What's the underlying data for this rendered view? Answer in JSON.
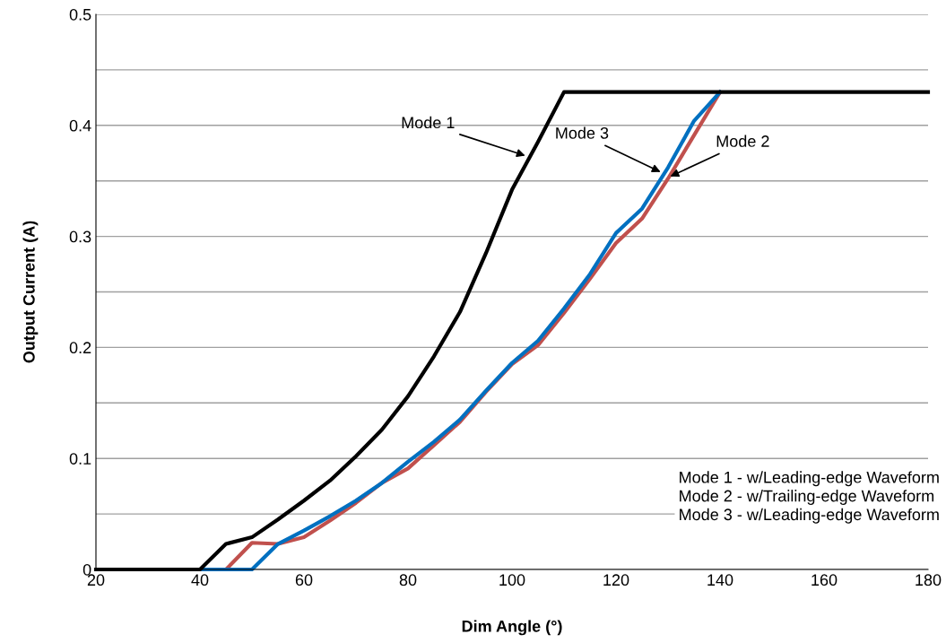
{
  "chart_data": {
    "type": "line",
    "xlabel": "Dim Angle (°)",
    "ylabel": "Output Current (A)",
    "xlim": [
      20,
      180
    ],
    "xticks": [
      20,
      40,
      60,
      80,
      100,
      120,
      140,
      160,
      180
    ],
    "ylim": [
      0,
      0.5
    ],
    "yticks": [
      0,
      {
        "value": 0.05,
        "label": null
      },
      0.1,
      {
        "value": 0.15,
        "label": null
      },
      0.2,
      {
        "value": 0.25,
        "label": null
      },
      0.3,
      {
        "value": 0.35,
        "label": null
      },
      0.4,
      {
        "value": 0.45,
        "label": null
      },
      0.5
    ],
    "grid": "y",
    "marker": "none",
    "line_style": "solid",
    "series": [
      {
        "color": "#c0504d",
        "x": [
          40,
          45,
          50,
          55,
          60,
          65,
          70,
          75,
          80,
          85,
          90,
          95,
          100,
          105,
          110,
          115,
          120,
          125,
          130,
          135,
          140
        ],
        "values": [
          0,
          0,
          0.024,
          0.023,
          0.029,
          0.044,
          0.06,
          0.078,
          0.091,
          0.112,
          0.133,
          0.16,
          0.185,
          0.202,
          0.231,
          0.262,
          0.294,
          0.316,
          0.352,
          0.391,
          0.43
        ]
      },
      {
        "color": "#0070c0",
        "x": [
          40,
          45,
          50,
          55,
          60,
          65,
          70,
          75,
          80,
          85,
          90,
          95,
          100,
          105,
          110,
          115,
          120,
          125,
          130,
          135,
          140
        ],
        "values": [
          0,
          0,
          0,
          0.023,
          0.035,
          0.048,
          0.062,
          0.078,
          0.097,
          0.115,
          0.135,
          0.161,
          0.186,
          0.206,
          0.235,
          0.266,
          0.303,
          0.325,
          0.362,
          0.404,
          0.43
        ]
      },
      {
        "color": "#000000",
        "x": [
          20,
          25,
          30,
          35,
          40,
          45,
          50,
          55,
          60,
          65,
          70,
          75,
          80,
          85,
          90,
          95,
          100,
          105,
          110,
          120,
          130,
          140,
          150,
          160,
          170,
          180
        ],
        "values": [
          0,
          0,
          0,
          0,
          0,
          0.023,
          0.029,
          0.045,
          0.062,
          0.08,
          0.102,
          0.126,
          0.156,
          0.192,
          0.232,
          0.285,
          0.342,
          0.385,
          0.43,
          0.43,
          0.43,
          0.43,
          0.43,
          0.43,
          0.43,
          0.43
        ]
      }
    ],
    "annotations": [
      {
        "text": "Mode 1",
        "x": 103,
        "y": 0.372
      },
      {
        "text": "Mode 3",
        "x": 129,
        "y": 0.357
      },
      {
        "text": "Mode 2",
        "x": 130,
        "y": 0.353
      },
      "Mode 1 - w/Leading-edge Waveform",
      "Mode 2 - w/Trailing-edge Waveform",
      "Mode 3 - w/Leading-edge Waveform"
    ]
  }
}
